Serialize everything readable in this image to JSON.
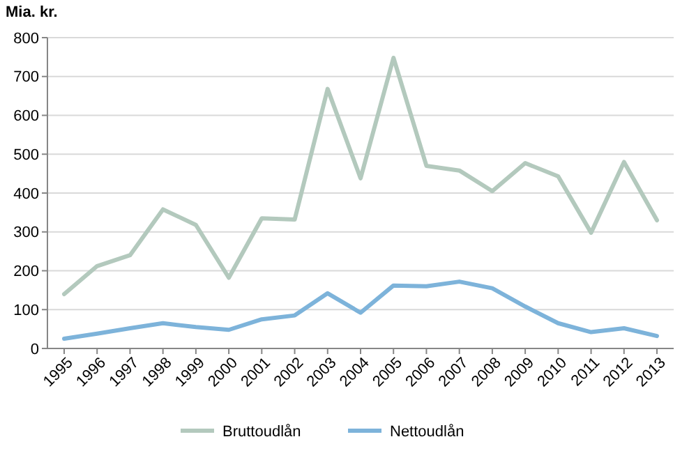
{
  "chart_data": {
    "type": "line",
    "ylabel": "Mia. kr.",
    "categories": [
      "1995",
      "1996",
      "1997",
      "1998",
      "1999",
      "2000",
      "2001",
      "2002",
      "2003",
      "2004",
      "2005",
      "2006",
      "2007",
      "2008",
      "2009",
      "2010",
      "2011",
      "2012",
      "2013"
    ],
    "series": [
      {
        "name": "Bruttoudlån",
        "color": "#b3c9bd",
        "values": [
          140,
          212,
          240,
          358,
          318,
          182,
          335,
          332,
          668,
          438,
          748,
          470,
          458,
          405,
          477,
          443,
          298,
          480,
          330
        ]
      },
      {
        "name": "Nettoudlån",
        "color": "#7db3da",
        "values": [
          25,
          38,
          52,
          65,
          55,
          48,
          75,
          85,
          142,
          92,
          162,
          160,
          172,
          155,
          108,
          65,
          42,
          52,
          32
        ]
      }
    ],
    "ylim": [
      0,
      800
    ],
    "yticks": [
      0,
      100,
      200,
      300,
      400,
      500,
      600,
      700,
      800
    ],
    "grid": "y",
    "legend": "bottom",
    "marker": "none",
    "line_style": "solid"
  }
}
